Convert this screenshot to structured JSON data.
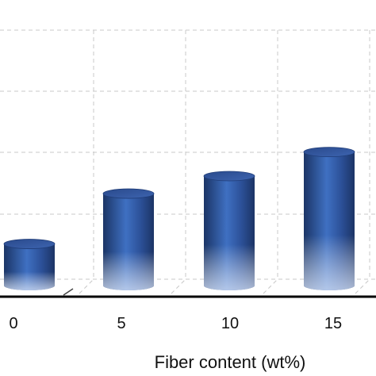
{
  "chart_data": {
    "type": "bar",
    "style": "3d-cylinder",
    "categories": [
      "0",
      "5",
      "10",
      "15"
    ],
    "values": [
      0.38,
      0.84,
      1.0,
      1.22
    ],
    "xlabel": "Fiber content (wt%)",
    "ylabel": "",
    "grid": true,
    "colors": {
      "bar_dark": "#1b3566",
      "bar_mid": "#3f70c2",
      "bar_light": "#b5c8ea",
      "grid": "#c8c8c8",
      "axis": "#000000"
    }
  }
}
